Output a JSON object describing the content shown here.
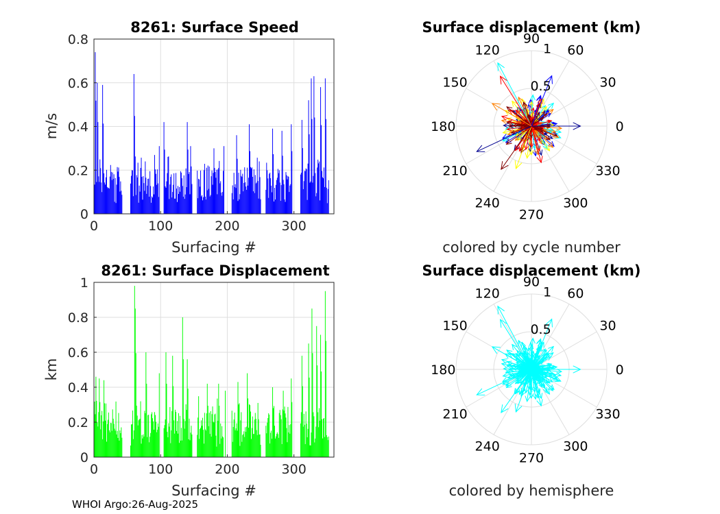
{
  "footer_text": "WHOI Argo:26-Aug-2025",
  "chart_data": [
    {
      "type": "bar",
      "title": "8261: Surface Speed",
      "xlabel": "Surfacing #",
      "ylabel": "m/s",
      "xlim": [
        0,
        360
      ],
      "ylim": [
        0,
        0.8
      ],
      "xticks": [
        0,
        100,
        200,
        300
      ],
      "yticks": [
        0,
        0.2,
        0.4,
        0.6,
        0.8
      ],
      "ytick_labels": [
        "0",
        "0.2",
        "0.4",
        "0.6",
        "0.8"
      ],
      "color": "#0000ff",
      "grid": true,
      "segments": [
        [
          1,
          42
        ],
        [
          55,
          98
        ],
        [
          105,
          147
        ],
        [
          155,
          194
        ],
        [
          207,
          250
        ],
        [
          258,
          297
        ],
        [
          310,
          352
        ]
      ],
      "peaks": [
        [
          2,
          0.74
        ],
        [
          5,
          0.6
        ],
        [
          13,
          0.59
        ],
        [
          60,
          0.64
        ],
        [
          98,
          0.31
        ],
        [
          105,
          0.42
        ],
        [
          140,
          0.42
        ],
        [
          145,
          0.31
        ],
        [
          180,
          0.3
        ],
        [
          195,
          0.31
        ],
        [
          214,
          0.36
        ],
        [
          233,
          0.41
        ],
        [
          248,
          0.24
        ],
        [
          268,
          0.39
        ],
        [
          282,
          0.38
        ],
        [
          296,
          0.41
        ],
        [
          312,
          0.43
        ],
        [
          322,
          0.52
        ],
        [
          326,
          0.62
        ],
        [
          330,
          0.63
        ],
        [
          340,
          0.58
        ],
        [
          347,
          0.62
        ]
      ]
    },
    {
      "type": "bar",
      "title": "8261: Surface Displacement",
      "xlabel": "Surfacing #",
      "ylabel": "km",
      "xlim": [
        0,
        360
      ],
      "ylim": [
        0,
        1
      ],
      "xticks": [
        0,
        100,
        200,
        300
      ],
      "yticks": [
        0,
        0.2,
        0.4,
        0.6,
        0.8,
        1
      ],
      "ytick_labels": [
        "0",
        "0.2",
        "0.4",
        "0.6",
        "0.8",
        "1"
      ],
      "color": "#00ff00",
      "grid": true,
      "segments": [
        [
          1,
          42
        ],
        [
          55,
          98
        ],
        [
          105,
          147
        ],
        [
          155,
          194
        ],
        [
          207,
          250
        ],
        [
          258,
          297
        ],
        [
          310,
          352
        ]
      ],
      "peaks": [
        [
          3,
          0.46
        ],
        [
          8,
          0.45
        ],
        [
          15,
          0.44
        ],
        [
          61,
          0.98
        ],
        [
          62,
          0.85
        ],
        [
          78,
          0.6
        ],
        [
          98,
          0.48
        ],
        [
          108,
          0.6
        ],
        [
          118,
          0.58
        ],
        [
          133,
          0.8
        ],
        [
          140,
          0.56
        ],
        [
          170,
          0.42
        ],
        [
          187,
          0.42
        ],
        [
          197,
          0.38
        ],
        [
          216,
          0.43
        ],
        [
          230,
          0.48
        ],
        [
          246,
          0.31
        ],
        [
          268,
          0.4
        ],
        [
          284,
          0.38
        ],
        [
          296,
          0.45
        ],
        [
          312,
          0.58
        ],
        [
          322,
          0.65
        ],
        [
          327,
          0.85
        ],
        [
          334,
          0.75
        ],
        [
          340,
          0.7
        ],
        [
          347,
          0.95
        ]
      ]
    },
    {
      "type": "polar",
      "title": "Surface displacement (km)",
      "subtitle": "colored by cycle number",
      "rmax": 1,
      "rticks": [
        0.5,
        1
      ],
      "rtick_labels": [
        "0.5",
        "1"
      ],
      "angle_labels": [
        "0",
        "30",
        "60",
        "90",
        "120",
        "150",
        "180",
        "210",
        "240",
        "270",
        "300",
        "330"
      ],
      "coloring": "cycle",
      "colormap": [
        "#00008f",
        "#0000ff",
        "#00ffff",
        "#ffff00",
        "#ff8000",
        "#ff0000",
        "#800000"
      ],
      "notable_vectors": [
        [
          0,
          0.65
        ],
        [
          118,
          0.95
        ],
        [
          122,
          0.78
        ],
        [
          205,
          0.8
        ],
        [
          250,
          0.6
        ],
        [
          285,
          0.5
        ],
        [
          68,
          0.72
        ],
        [
          150,
          0.6
        ],
        [
          235,
          0.7
        ]
      ]
    },
    {
      "type": "polar",
      "title": "Surface displacement (km)",
      "subtitle": "colored by hemisphere",
      "rmax": 1,
      "rticks": [
        0.5,
        1
      ],
      "rtick_labels": [
        "0.5",
        "1"
      ],
      "angle_labels": [
        "0",
        "30",
        "60",
        "90",
        "120",
        "150",
        "180",
        "210",
        "240",
        "270",
        "300",
        "330"
      ],
      "coloring": "hemisphere",
      "color": "#00ffff",
      "notable_vectors": [
        [
          0,
          0.65
        ],
        [
          118,
          0.95
        ],
        [
          122,
          0.78
        ],
        [
          205,
          0.8
        ],
        [
          250,
          0.6
        ],
        [
          285,
          0.5
        ],
        [
          68,
          0.72
        ],
        [
          150,
          0.6
        ],
        [
          235,
          0.7
        ]
      ]
    }
  ]
}
